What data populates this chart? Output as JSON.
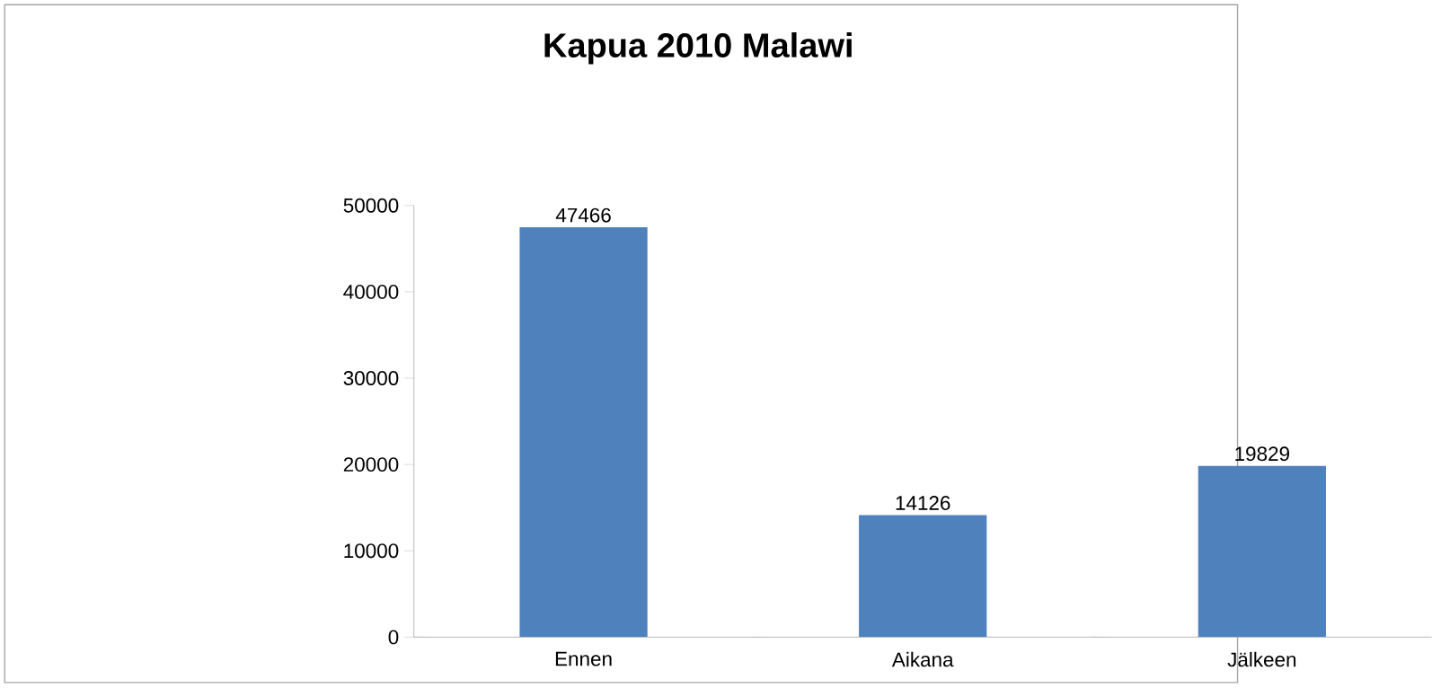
{
  "chart_data": {
    "type": "bar",
    "title": "Kapua 2010 Malawi",
    "categories": [
      "Ennen",
      "Aikana",
      "Jälkeen"
    ],
    "values": [
      47466,
      14126,
      19829
    ],
    "color": "#4f81bd",
    "ylim": [
      0,
      50000
    ],
    "yticks": [
      0,
      10000,
      20000,
      30000,
      40000,
      50000
    ],
    "data_labels": true
  }
}
